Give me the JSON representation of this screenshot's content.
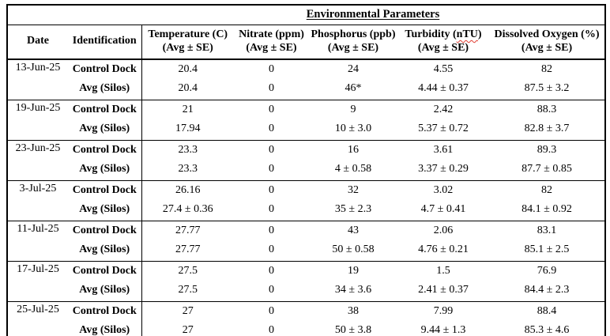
{
  "table": {
    "title": "Environmental Parameters",
    "header": {
      "date": "Date",
      "identification": "Identification",
      "columns": [
        {
          "line1": "Temperature (C)",
          "line2": "(Avg ± SE)"
        },
        {
          "line1": "Nitrate (ppm)",
          "line2": "(Avg ± SE)"
        },
        {
          "line1": "Phosphorus (ppb)",
          "line2": "(Avg ± SE)"
        },
        {
          "line1_pre": "Turbidity (",
          "line1_spellcheck": "nTU",
          "line1_post": ")",
          "line2": "(Avg ± SE)"
        },
        {
          "line1": "Dissolved Oxygen (%)",
          "line2": "(Avg ± SE)"
        }
      ]
    },
    "row_labels": {
      "control": "Control Dock",
      "avg": "Avg (Silos)"
    },
    "rows": [
      {
        "date": "13-Jun-25",
        "control": [
          "20.4",
          "0",
          "24",
          "4.55",
          "82"
        ],
        "avg": [
          "20.4",
          "0",
          "46*",
          "4.44 ± 0.37",
          "87.5 ± 3.2"
        ]
      },
      {
        "date": "19-Jun-25",
        "control": [
          "21",
          "0",
          "9",
          "2.42",
          "88.3"
        ],
        "avg": [
          "17.94",
          "0",
          "10 ± 3.0",
          "5.37 ± 0.72",
          "82.8 ± 3.7"
        ]
      },
      {
        "date": "23-Jun-25",
        "control": [
          "23.3",
          "0",
          "16",
          "3.61",
          "89.3"
        ],
        "avg": [
          "23.3",
          "0",
          "4 ± 0.58",
          "3.37 ± 0.29",
          "87.7 ± 0.85"
        ]
      },
      {
        "date": "3-Jul-25",
        "control": [
          "26.16",
          "0",
          "32",
          "3.02",
          "82"
        ],
        "avg": [
          "27.4 ± 0.36",
          "0",
          "35 ± 2.3",
          "4.7 ± 0.41",
          "84.1 ± 0.92"
        ]
      },
      {
        "date": "11-Jul-25",
        "control": [
          "27.77",
          "0",
          "43",
          "2.06",
          "83.1"
        ],
        "avg": [
          "27.77",
          "0",
          "50 ± 0.58",
          "4.76 ± 0.21",
          "85.1 ± 2.5"
        ]
      },
      {
        "date": "17-Jul-25",
        "control": [
          "27.5",
          "0",
          "19",
          "1.5",
          "76.9"
        ],
        "avg": [
          "27.5",
          "0",
          "34 ± 3.6",
          "2.41 ± 0.37",
          "84.4 ± 2.3"
        ]
      },
      {
        "date": "25-Jul-25",
        "control": [
          "27",
          "0",
          "38",
          "7.99",
          "88.4"
        ],
        "avg": [
          "27",
          "0",
          "50 ± 3.8",
          "9.44 ± 1.3",
          "85.3 ± 4.6"
        ]
      }
    ]
  },
  "colors": {
    "border": "#000000",
    "text": "#000000",
    "spellcheck_squiggle": "#e03c31",
    "background": "#ffffff"
  }
}
